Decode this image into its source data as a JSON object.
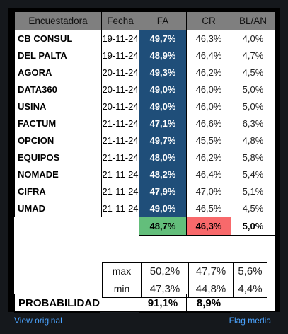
{
  "headers": {
    "pollster": "Encuestadora",
    "date": "Fecha",
    "fa": "FA",
    "cr": "CR",
    "blan": "BL/AN"
  },
  "rows": [
    {
      "pollster": "CB CONSUL",
      "date": "19-11-24",
      "fa": "49,7%",
      "cr": "46,3%",
      "blan": "4,0%"
    },
    {
      "pollster": "DEL PALTA",
      "date": "19-11-24",
      "fa": "48,9%",
      "cr": "46,4%",
      "blan": "4,7%"
    },
    {
      "pollster": "AGORA",
      "date": "20-11-24",
      "fa": "49,3%",
      "cr": "46,2%",
      "blan": "4,5%"
    },
    {
      "pollster": "DATA360",
      "date": "20-11-24",
      "fa": "49,0%",
      "cr": "46,0%",
      "blan": "5,0%"
    },
    {
      "pollster": "USINA",
      "date": "20-11-24",
      "fa": "49,0%",
      "cr": "46,0%",
      "blan": "5,0%"
    },
    {
      "pollster": "FACTUM",
      "date": "21-11-24",
      "fa": "47,1%",
      "cr": "46,6%",
      "blan": "6,3%"
    },
    {
      "pollster": "OPCION",
      "date": "21-11-24",
      "fa": "49,7%",
      "cr": "45,5%",
      "blan": "4,8%"
    },
    {
      "pollster": "EQUIPOS",
      "date": "21-11-24",
      "fa": "48,0%",
      "cr": "46,2%",
      "blan": "5,8%"
    },
    {
      "pollster": "NOMADE",
      "date": "21-11-24",
      "fa": "48,2%",
      "cr": "46,4%",
      "blan": "5,4%"
    },
    {
      "pollster": "CIFRA",
      "date": "21-11-24",
      "fa": "47,9%",
      "cr": "47,0%",
      "blan": "5,1%"
    },
    {
      "pollster": "UMAD",
      "date": "21-11-24",
      "fa": "49,0%",
      "cr": "46,5%",
      "blan": "4,5%"
    }
  ],
  "average": {
    "fa": "48,7%",
    "cr": "46,3%",
    "blan": "5,0%"
  },
  "stats": {
    "max": {
      "label": "max",
      "fa": "50,2%",
      "cr": "47,7%",
      "blan": "5,6%"
    },
    "min": {
      "label": "min",
      "fa": "47,3%",
      "cr": "44,8%",
      "blan": "4,4%"
    }
  },
  "probability": {
    "label": "PROBABILIDAD",
    "fa": "91,1%",
    "cr": "8,9%"
  },
  "links": {
    "view_original": "View original",
    "flag_media": "Flag media"
  },
  "colors": {
    "fa_cell": "#1f4e79",
    "avg_fa": "#63be7b",
    "avg_cr": "#f8696b",
    "header": "#7f7f7f"
  }
}
